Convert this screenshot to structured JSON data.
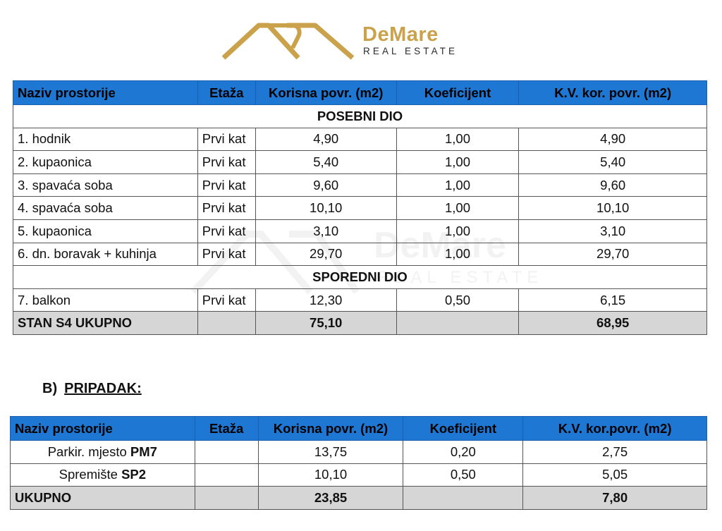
{
  "logo": {
    "name": "DeMare",
    "subtitle": "REAL ESTATE",
    "accent_color": "#c9a24b"
  },
  "table_main": {
    "headers": [
      "Naziv prostorije",
      "Etaža",
      "Korisna povr. (m2)",
      "Koeficijent",
      "K.V. kor. povr. (m2)"
    ],
    "section_primary": "POSEBNI DIO",
    "rows_primary": [
      {
        "name": "1. hodnik",
        "floor": "Prvi kat",
        "area": "4,90",
        "coef": "1,00",
        "kv": "4,90"
      },
      {
        "name": "2. kupaonica",
        "floor": "Prvi kat",
        "area": "5,40",
        "coef": "1,00",
        "kv": "5,40"
      },
      {
        "name": "3. spavaća soba",
        "floor": "Prvi kat",
        "area": "9,60",
        "coef": "1,00",
        "kv": "9,60"
      },
      {
        "name": "4. spavaća soba",
        "floor": "Prvi kat",
        "area": "10,10",
        "coef": "1,00",
        "kv": "10,10"
      },
      {
        "name": "5. kupaonica",
        "floor": "Prvi kat",
        "area": "3,10",
        "coef": "1,00",
        "kv": "3,10"
      },
      {
        "name": "6. dn. boravak + kuhinja",
        "floor": "Prvi kat",
        "area": "29,70",
        "coef": "1,00",
        "kv": "29,70"
      }
    ],
    "section_secondary": "SPOREDNI DIO",
    "rows_secondary": [
      {
        "name": "7. balkon",
        "floor": "Prvi kat",
        "area": "12,30",
        "coef": "0,50",
        "kv": "6,15"
      }
    ],
    "total": {
      "label": "STAN S4 UKUPNO",
      "area": "75,10",
      "kv": "68,95"
    }
  },
  "section_b": {
    "prefix": "B)",
    "title": "PRIPADAK:"
  },
  "table_pripadak": {
    "headers": [
      "Naziv prostorije",
      "Etaža",
      "Korisna povr. (m2)",
      "Koeficijent",
      "K.V. kor.povr. (m2)"
    ],
    "rows": [
      {
        "name": "Parkir. mjesto",
        "code": "PM7",
        "area": "13,75",
        "coef": "0,20",
        "kv": "2,75"
      },
      {
        "name": "Spremište",
        "code": "SP2",
        "area": "10,10",
        "coef": "0,50",
        "kv": "5,05"
      }
    ],
    "total": {
      "label": "UKUPNO",
      "area": "23,85",
      "kv": "7,80"
    }
  },
  "colors": {
    "header_blue": "#1f77d4",
    "total_gray": "#d6d6d6"
  }
}
